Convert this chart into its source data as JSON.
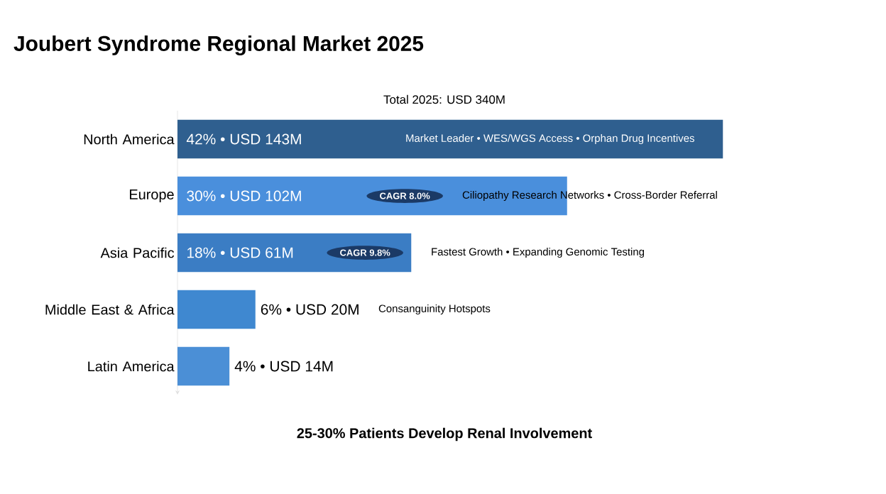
{
  "chart_data": {
    "type": "bar",
    "orientation": "horizontal",
    "title": "Joubert Syndrome Regional Market 2025",
    "subtitle": "Total 2025: USD 340M",
    "categories": [
      "North America",
      "Europe",
      "Asia Pacific",
      "Middle East & Africa",
      "Latin America"
    ],
    "values": [
      42,
      30,
      18,
      6,
      4
    ],
    "colors": [
      "#2f5f8f",
      "#4a8fdc",
      "#3b7dc4",
      "#3f88d0",
      "#4b8fd6"
    ],
    "value_labels": [
      "42% • USD 143M",
      "30% • USD 102M",
      "18% • USD 61M",
      "6% • USD 20M",
      "4% • USD 14M"
    ],
    "annotations": [
      "Market Leader • WES/WGS Access • Orphan Drug Incentives",
      "CAGR 8.0%",
      "Ciliopathy Research Networks • Cross-Border Referral",
      "CAGR 9.8%",
      "Fastest Growth • Expanding Genomic Testing",
      "Consanguinity Hotspots",
      "25-30% Patients Develop Renal Involvement"
    ]
  }
}
